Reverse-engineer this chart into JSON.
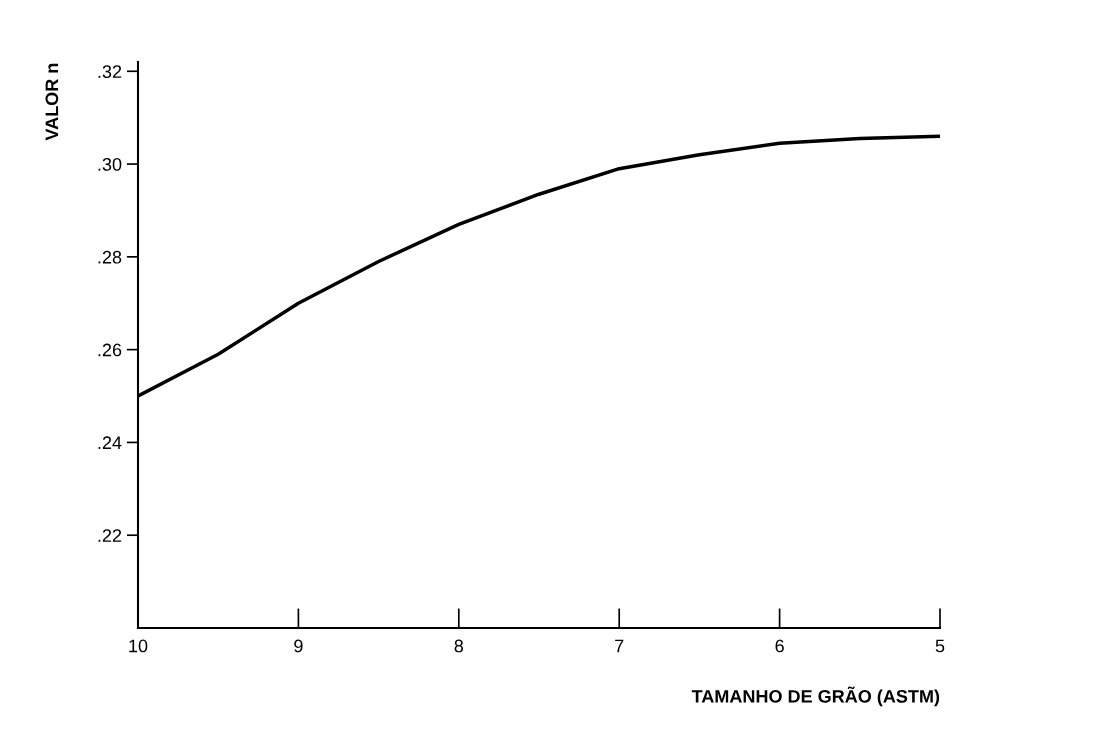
{
  "chart_data": {
    "type": "line",
    "xlabel": "TAMANHO DE GRÃO (ASTM)",
    "ylabel": "VALOR n",
    "x": [
      10,
      9.5,
      9,
      8.5,
      8,
      7.5,
      7,
      6.5,
      6,
      5.5,
      5
    ],
    "series": [
      {
        "color": "#000000",
        "values": [
          0.25,
          0.259,
          0.27,
          0.279,
          0.287,
          0.2935,
          0.299,
          0.302,
          0.3045,
          0.3055,
          0.306
        ]
      }
    ],
    "xlim": [
      10,
      5
    ],
    "xticks": [
      {
        "value": 10,
        "label": "10"
      },
      9,
      8,
      7,
      6,
      5
    ],
    "ylim": [
      0.2,
      0.322
    ],
    "yticks": [
      {
        "value": 0.22,
        "label": ".22"
      },
      {
        "value": 0.24,
        "label": ".24"
      },
      {
        "value": 0.26,
        "label": ".26"
      },
      {
        "value": 0.28,
        "label": ".28"
      },
      {
        "value": 0.3,
        "label": ".30"
      },
      {
        "value": 0.32,
        "label": ".32"
      }
    ],
    "grid": false,
    "marker": "none",
    "line_style": "solid"
  }
}
